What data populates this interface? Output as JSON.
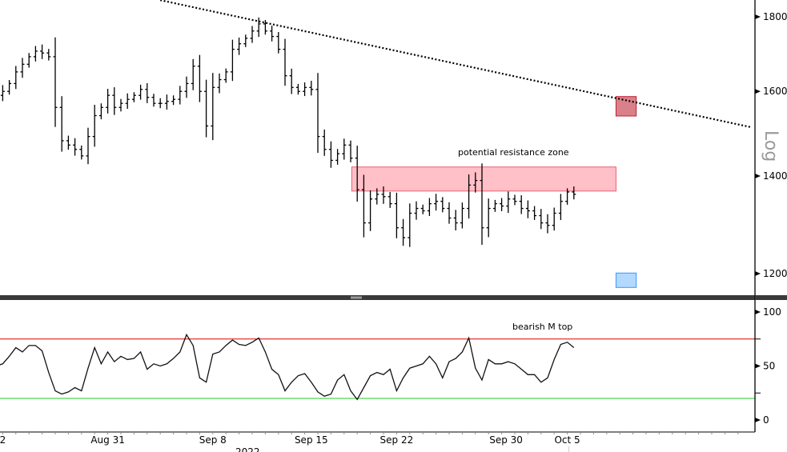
{
  "chart_data": [
    {
      "type": "ohlc",
      "panel": "price",
      "scale": "log",
      "scale_label": "Log",
      "start": "2022-08-22T00:00",
      "interval": "12h",
      "closes": [
        1580,
        1590,
        1600,
        1620,
        1650,
        1670,
        1690,
        1705,
        1700,
        1690,
        1560,
        1480,
        1470,
        1460,
        1445,
        1490,
        1540,
        1560,
        1590,
        1560,
        1570,
        1580,
        1590,
        1605,
        1585,
        1570,
        1570,
        1575,
        1580,
        1600,
        1620,
        1665,
        1600,
        1515,
        1610,
        1630,
        1650,
        1710,
        1725,
        1740,
        1760,
        1780,
        1760,
        1745,
        1710,
        1640,
        1610,
        1600,
        1610,
        1605,
        1490,
        1460,
        1435,
        1450,
        1470,
        1440,
        1370,
        1300,
        1350,
        1360,
        1355,
        1340,
        1290,
        1270,
        1320,
        1330,
        1325,
        1340,
        1345,
        1330,
        1310,
        1300,
        1330,
        1380,
        1390,
        1290,
        1330,
        1340,
        1335,
        1350,
        1345,
        1330,
        1325,
        1315,
        1300,
        1295,
        1320,
        1345,
        1365,
        1360
      ],
      "ylim": [
        1165,
        1850
      ],
      "y_ticks": [
        "1800",
        "1600",
        "1400",
        "1200"
      ],
      "trendline": {
        "style": "dotted",
        "from": [
          "2022-09-04T00:00",
          1848
        ],
        "to": [
          "2022-10-19T00:00",
          1512
        ]
      },
      "resistance_zone": {
        "label": "potential resistance zone",
        "from": "2022-09-18T14:00",
        "to": "2022-10-08T17:00",
        "low": 1367,
        "high": 1420,
        "color": "#ffc0c8"
      },
      "markers": [
        {
          "name": "red-target",
          "from": "2022-10-08T17:00",
          "to": "2022-10-10T06:00",
          "low": 1539,
          "high": 1587,
          "color": "#d9808a"
        },
        {
          "name": "blue-target",
          "from": "2022-10-08T17:00",
          "to": "2022-10-10T06:00",
          "low": 1174,
          "high": 1201,
          "color": "#b3d9ff"
        }
      ]
    },
    {
      "type": "line",
      "panel": "rsi",
      "ylim": [
        0,
        105
      ],
      "y_ticks": [
        "100",
        "50",
        "0"
      ],
      "upper_level": 75,
      "lower_level": 20,
      "upper_color": "#e00000",
      "lower_color": "#22cc22",
      "annotation": "bearish M top",
      "values": [
        52,
        50,
        52,
        59,
        67,
        63,
        69,
        69,
        64,
        44,
        27,
        24,
        26,
        30,
        27,
        48,
        67,
        52,
        63,
        54,
        59,
        56,
        57,
        63,
        47,
        52,
        50,
        52,
        57,
        63,
        79,
        69,
        39,
        35,
        61,
        63,
        69,
        74,
        70,
        69,
        72,
        76,
        63,
        47,
        42,
        27,
        35,
        41,
        43,
        35,
        26,
        22,
        24,
        37,
        42,
        27,
        19,
        30,
        41,
        44,
        42,
        47,
        27,
        39,
        48,
        50,
        52,
        59,
        52,
        39,
        54,
        57,
        63,
        76,
        48,
        37,
        56,
        52,
        52,
        54,
        52,
        47,
        42,
        42,
        35,
        39,
        56,
        70,
        72,
        67
      ]
    }
  ],
  "x_axis": {
    "ticks": [
      {
        "label": "2",
        "date": "2022-08-23T00:00"
      },
      {
        "label": "Aug 31",
        "date": "2022-08-31T00:00"
      },
      {
        "label": "Sep 8",
        "date": "2022-09-08T00:00"
      },
      {
        "label": "Sep 15",
        "date": "2022-09-15T12:00"
      },
      {
        "label": "Sep 22",
        "date": "2022-09-22T00:00"
      },
      {
        "label": "Sep 30",
        "date": "2022-09-30T08:00"
      },
      {
        "label": "Oct 5",
        "date": "2022-10-05T00:00"
      }
    ],
    "year_label": "2022"
  }
}
